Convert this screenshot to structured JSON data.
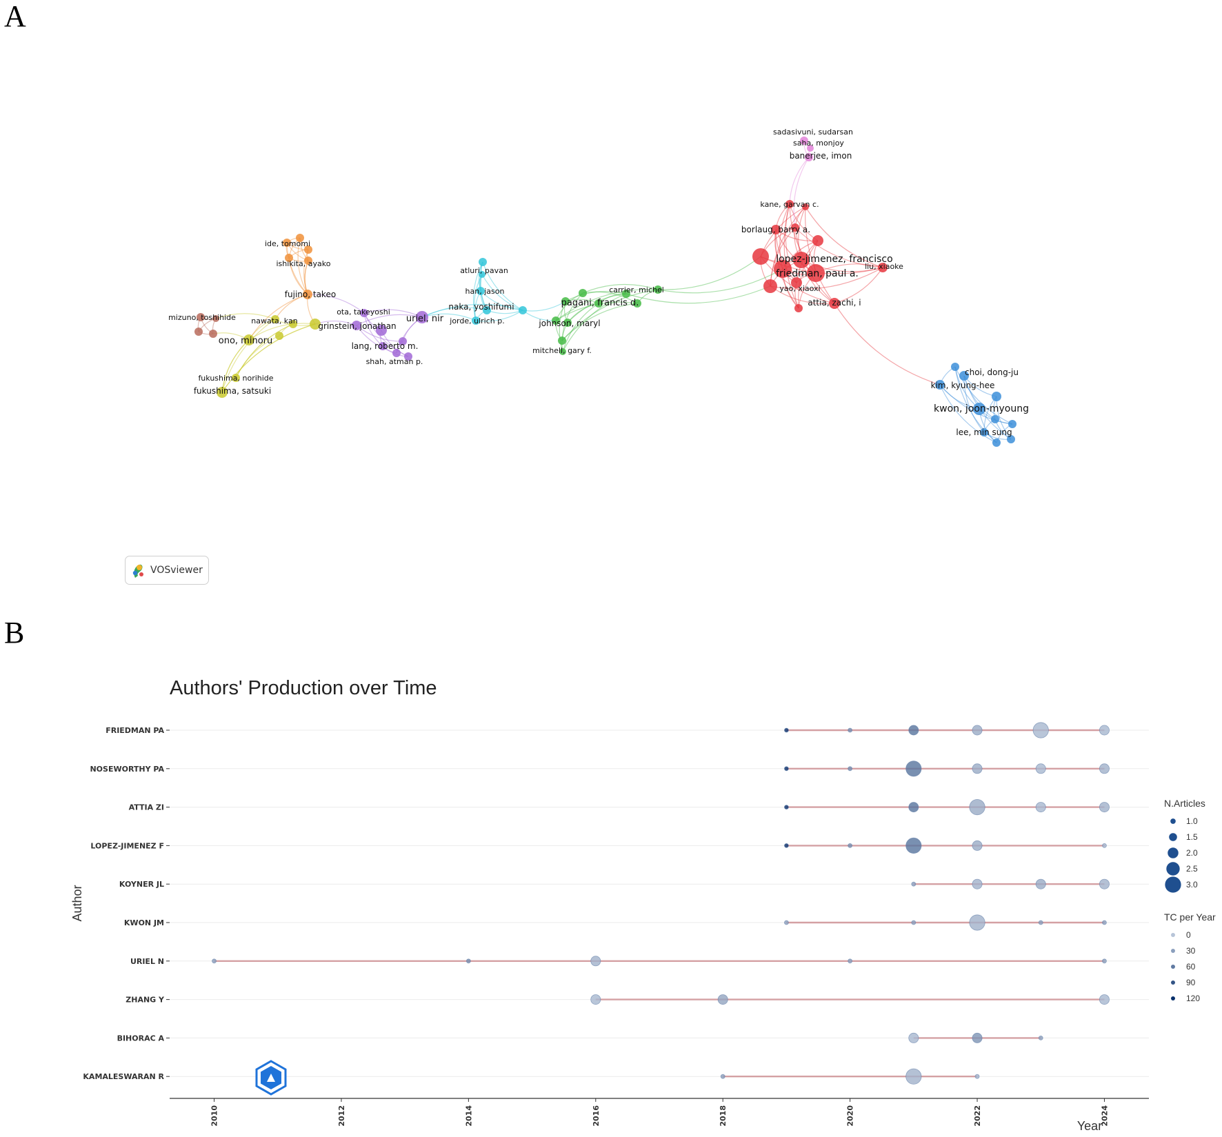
{
  "panels": {
    "a_label": "A",
    "b_label": "B"
  },
  "vosviewer": {
    "logo_text": "VOSviewer",
    "clusters": [
      {
        "name": "orange",
        "color": "#f0913a"
      },
      {
        "name": "brown",
        "color": "#b86b5c"
      },
      {
        "name": "yellow",
        "color": "#c9c92e"
      },
      {
        "name": "purple",
        "color": "#a169d6"
      },
      {
        "name": "cyan",
        "color": "#33c6d9"
      },
      {
        "name": "green",
        "color": "#45bb45"
      },
      {
        "name": "red",
        "color": "#e6373f"
      },
      {
        "name": "pink",
        "color": "#e384d9"
      },
      {
        "name": "blue",
        "color": "#3d8fd9"
      }
    ],
    "labels": [
      {
        "text": "sadasivuni, sudarsan",
        "cluster": "pink"
      },
      {
        "text": "saha, monjoy",
        "cluster": "pink"
      },
      {
        "text": "banerjee, imon",
        "cluster": "pink"
      },
      {
        "text": "kane, garvan c.",
        "cluster": "red"
      },
      {
        "text": "borlaug, barry a.",
        "cluster": "red"
      },
      {
        "text": "lopez-jimenez, francisco",
        "cluster": "red"
      },
      {
        "text": "friedman, paul a.",
        "cluster": "red"
      },
      {
        "text": "liu, xiaoke",
        "cluster": "red"
      },
      {
        "text": "yao, xiaoxi",
        "cluster": "red"
      },
      {
        "text": "attia, zachi, i",
        "cluster": "red"
      },
      {
        "text": "ide, tomomi",
        "cluster": "orange"
      },
      {
        "text": "ishikita, ayako",
        "cluster": "orange"
      },
      {
        "text": "fujino, takeo",
        "cluster": "orange"
      },
      {
        "text": "mizuno, toshihide",
        "cluster": "brown"
      },
      {
        "text": "nawata, kan",
        "cluster": "yellow"
      },
      {
        "text": "ono, minoru",
        "cluster": "yellow"
      },
      {
        "text": "grinstein, jonathan",
        "cluster": "yellow"
      },
      {
        "text": "fukushima, norihide",
        "cluster": "yellow"
      },
      {
        "text": "fukushima, satsuki",
        "cluster": "yellow"
      },
      {
        "text": "ota, takeyoshi",
        "cluster": "purple"
      },
      {
        "text": "uriel, nir",
        "cluster": "purple"
      },
      {
        "text": "lang, roberto m.",
        "cluster": "purple"
      },
      {
        "text": "shah, atman p.",
        "cluster": "purple"
      },
      {
        "text": "atluri, pavan",
        "cluster": "cyan"
      },
      {
        "text": "han, jason",
        "cluster": "cyan"
      },
      {
        "text": "naka, yoshifumi",
        "cluster": "cyan"
      },
      {
        "text": "jorde, ulrich p.",
        "cluster": "cyan"
      },
      {
        "text": "carrier, michel",
        "cluster": "green"
      },
      {
        "text": "pagani, francis d.",
        "cluster": "green"
      },
      {
        "text": "johnson, maryl",
        "cluster": "green"
      },
      {
        "text": "mitchell, gary f.",
        "cluster": "green"
      },
      {
        "text": "choi, dong-ju",
        "cluster": "blue"
      },
      {
        "text": "kim, kyung-hee",
        "cluster": "blue"
      },
      {
        "text": "kwon, joon-myoung",
        "cluster": "blue"
      },
      {
        "text": "lee, min sung",
        "cluster": "blue"
      }
    ]
  },
  "chart_data": {
    "type": "timeline-bubble",
    "title": "Authors' Production over Time",
    "xlabel": "Year",
    "ylabel": "Author",
    "xlim": [
      2009.3,
      2024.7
    ],
    "x_ticks": [
      2010,
      2012,
      2014,
      2016,
      2018,
      2020,
      2022,
      2024
    ],
    "authors": [
      "FRIEDMAN PA",
      "NOSEWORTHY PA",
      "ATTIA ZI",
      "LOPEZ-JIMENEZ F",
      "KOYNER JL",
      "KWON JM",
      "URIEL N",
      "ZHANG Y",
      "BIHORAC A",
      "KAMALESWARAN R"
    ],
    "line_color": "#d4a0a3",
    "point_color_high_tc": "#08306b",
    "point_color_low_tc": "#b7c4d8",
    "lines": [
      {
        "author": "FRIEDMAN PA",
        "start": 2019,
        "end": 2024
      },
      {
        "author": "NOSEWORTHY PA",
        "start": 2019,
        "end": 2024
      },
      {
        "author": "ATTIA ZI",
        "start": 2019,
        "end": 2024
      },
      {
        "author": "LOPEZ-JIMENEZ F",
        "start": 2019,
        "end": 2024
      },
      {
        "author": "KOYNER JL",
        "start": 2021,
        "end": 2024
      },
      {
        "author": "KWON JM",
        "start": 2019,
        "end": 2024
      },
      {
        "author": "URIEL N",
        "start": 2010,
        "end": 2024
      },
      {
        "author": "ZHANG Y",
        "start": 2016,
        "end": 2024
      },
      {
        "author": "BIHORAC A",
        "start": 2021,
        "end": 2023
      },
      {
        "author": "KAMALESWARAN R",
        "start": 2018,
        "end": 2022
      }
    ],
    "points": [
      {
        "author": "FRIEDMAN PA",
        "year": 2019,
        "articles": 1,
        "tc_per_year": 120
      },
      {
        "author": "FRIEDMAN PA",
        "year": 2020,
        "articles": 1,
        "tc_per_year": 45
      },
      {
        "author": "FRIEDMAN PA",
        "year": 2021,
        "articles": 2,
        "tc_per_year": 65
      },
      {
        "author": "FRIEDMAN PA",
        "year": 2022,
        "articles": 2,
        "tc_per_year": 20
      },
      {
        "author": "FRIEDMAN PA",
        "year": 2023,
        "articles": 3,
        "tc_per_year": 10
      },
      {
        "author": "FRIEDMAN PA",
        "year": 2024,
        "articles": 2,
        "tc_per_year": 10
      },
      {
        "author": "NOSEWORTHY PA",
        "year": 2019,
        "articles": 1,
        "tc_per_year": 120
      },
      {
        "author": "NOSEWORTHY PA",
        "year": 2020,
        "articles": 1,
        "tc_per_year": 45
      },
      {
        "author": "NOSEWORTHY PA",
        "year": 2021,
        "articles": 3,
        "tc_per_year": 65
      },
      {
        "author": "NOSEWORTHY PA",
        "year": 2022,
        "articles": 2,
        "tc_per_year": 20
      },
      {
        "author": "NOSEWORTHY PA",
        "year": 2023,
        "articles": 2,
        "tc_per_year": 10
      },
      {
        "author": "NOSEWORTHY PA",
        "year": 2024,
        "articles": 2,
        "tc_per_year": 15
      },
      {
        "author": "ATTIA ZI",
        "year": 2019,
        "articles": 1,
        "tc_per_year": 120
      },
      {
        "author": "ATTIA ZI",
        "year": 2021,
        "articles": 2,
        "tc_per_year": 65
      },
      {
        "author": "ATTIA ZI",
        "year": 2022,
        "articles": 3,
        "tc_per_year": 20
      },
      {
        "author": "ATTIA ZI",
        "year": 2023,
        "articles": 2,
        "tc_per_year": 10
      },
      {
        "author": "ATTIA ZI",
        "year": 2024,
        "articles": 2,
        "tc_per_year": 15
      },
      {
        "author": "LOPEZ-JIMENEZ F",
        "year": 2019,
        "articles": 1,
        "tc_per_year": 120
      },
      {
        "author": "LOPEZ-JIMENEZ F",
        "year": 2020,
        "articles": 1,
        "tc_per_year": 45
      },
      {
        "author": "LOPEZ-JIMENEZ F",
        "year": 2021,
        "articles": 3,
        "tc_per_year": 65
      },
      {
        "author": "LOPEZ-JIMENEZ F",
        "year": 2022,
        "articles": 2,
        "tc_per_year": 20
      },
      {
        "author": "LOPEZ-JIMENEZ F",
        "year": 2024,
        "articles": 1,
        "tc_per_year": 15
      },
      {
        "author": "KOYNER JL",
        "year": 2021,
        "articles": 1,
        "tc_per_year": 30
      },
      {
        "author": "KOYNER JL",
        "year": 2022,
        "articles": 2,
        "tc_per_year": 15
      },
      {
        "author": "KOYNER JL",
        "year": 2023,
        "articles": 2,
        "tc_per_year": 20
      },
      {
        "author": "KOYNER JL",
        "year": 2024,
        "articles": 2,
        "tc_per_year": 15
      },
      {
        "author": "KWON JM",
        "year": 2019,
        "articles": 1,
        "tc_per_year": 30
      },
      {
        "author": "KWON JM",
        "year": 2021,
        "articles": 1,
        "tc_per_year": 30
      },
      {
        "author": "KWON JM",
        "year": 2022,
        "articles": 3,
        "tc_per_year": 15
      },
      {
        "author": "KWON JM",
        "year": 2023,
        "articles": 1,
        "tc_per_year": 30
      },
      {
        "author": "KWON JM",
        "year": 2024,
        "articles": 1,
        "tc_per_year": 30
      },
      {
        "author": "URIEL N",
        "year": 2010,
        "articles": 1,
        "tc_per_year": 30
      },
      {
        "author": "URIEL N",
        "year": 2014,
        "articles": 1,
        "tc_per_year": 45
      },
      {
        "author": "URIEL N",
        "year": 2016,
        "articles": 2,
        "tc_per_year": 15
      },
      {
        "author": "URIEL N",
        "year": 2020,
        "articles": 1,
        "tc_per_year": 30
      },
      {
        "author": "URIEL N",
        "year": 2024,
        "articles": 1,
        "tc_per_year": 30
      },
      {
        "author": "ZHANG Y",
        "year": 2016,
        "articles": 2,
        "tc_per_year": 10
      },
      {
        "author": "ZHANG Y",
        "year": 2018,
        "articles": 2,
        "tc_per_year": 25
      },
      {
        "author": "ZHANG Y",
        "year": 2024,
        "articles": 2,
        "tc_per_year": 10
      },
      {
        "author": "BIHORAC A",
        "year": 2021,
        "articles": 2,
        "tc_per_year": 10
      },
      {
        "author": "BIHORAC A",
        "year": 2022,
        "articles": 2,
        "tc_per_year": 40
      },
      {
        "author": "BIHORAC A",
        "year": 2023,
        "articles": 1,
        "tc_per_year": 30
      },
      {
        "author": "KAMALESWARAN R",
        "year": 2018,
        "articles": 1,
        "tc_per_year": 30
      },
      {
        "author": "KAMALESWARAN R",
        "year": 2021,
        "articles": 3,
        "tc_per_year": 15
      },
      {
        "author": "KAMALESWARAN R",
        "year": 2022,
        "articles": 1,
        "tc_per_year": 15
      }
    ],
    "legend": {
      "placement": "right",
      "articles_title": "N.Articles",
      "articles_values": [
        "1.0",
        "1.5",
        "2.0",
        "2.5",
        "3.0"
      ],
      "tc_title": "TC per Year",
      "tc_values": [
        "0",
        "30",
        "60",
        "90",
        "120"
      ]
    }
  }
}
